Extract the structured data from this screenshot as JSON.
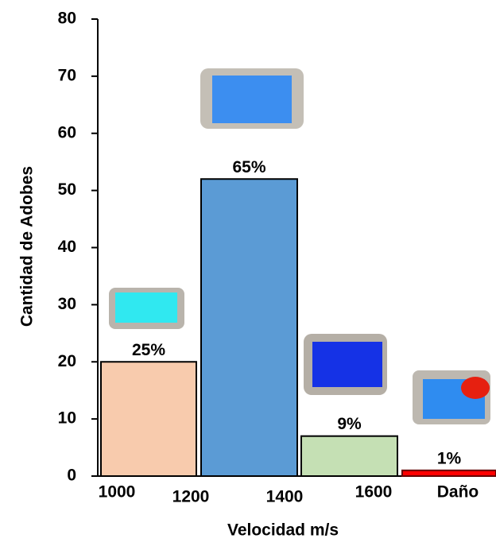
{
  "chart_data": {
    "type": "bar",
    "x_label": "Velocidad m/s",
    "y_label": "Cantidad de Adobes",
    "categories": [
      null,
      null,
      null,
      null
    ],
    "x_labels": [
      "1000",
      "1200",
      "1400",
      "1600",
      "Daño"
    ],
    "values": [
      20,
      52,
      7,
      1
    ],
    "value_labels": [
      "25%",
      "65%",
      "9%",
      "1%"
    ],
    "colors": [
      "#f8cbad",
      "#5b9bd5",
      "#c5e0b4",
      "#ff0000"
    ],
    "ylim": [
      0,
      80
    ],
    "yticks": [
      0,
      10,
      20,
      30,
      40,
      50,
      60,
      70,
      80
    ],
    "grid": false
  }
}
